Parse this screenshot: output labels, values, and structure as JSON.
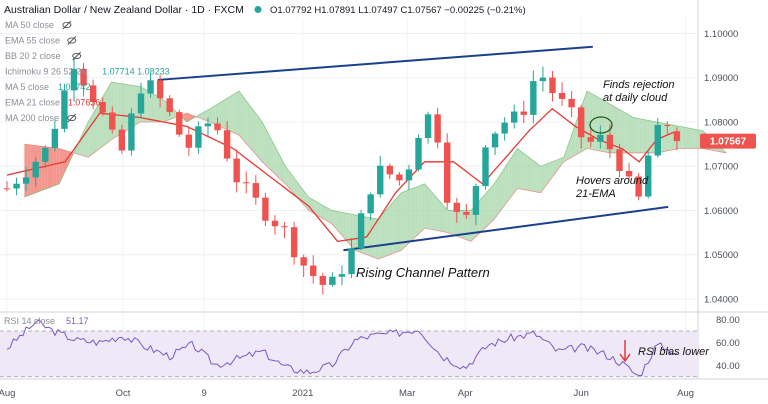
{
  "header": {
    "symbol": "Australian Dollar / New Zealand Dollar · 1D · FXCM",
    "ohlc": "O1.07792  H1.07891  L1.07497  C1.07567  −0.00225 (−0.21%)"
  },
  "legend": [
    {
      "label": "MA 50 close",
      "value": ""
    },
    {
      "label": "EMA 55 close",
      "value": ""
    },
    {
      "label": "BB 20 2 close",
      "value": ""
    },
    {
      "label": "Ichimoku 9 26 52 26",
      "value": "1.07714  1.08233"
    },
    {
      "label": "MA 5 close",
      "value": "1.07742"
    },
    {
      "label": "EMA 21 close",
      "value": "1.07636"
    },
    {
      "label": "MA 200 close",
      "value": ""
    }
  ],
  "rsi_label": "RSI 14 close",
  "rsi_value": "51.17",
  "last_price_tag": "1.07567",
  "colors": {
    "up": "#26a69a",
    "down": "#ef5350",
    "ema": "#e53935",
    "ma5": "#1e3a8a",
    "channel": "#1c3f8c",
    "cloud_bull": "#a5d6a7",
    "cloud_bear": "#f28b82",
    "rsi_line": "#7e57c2",
    "rsi_band": "#ede7f6",
    "price_tag": "#ef5350",
    "anno_arrow": "#e53935"
  },
  "annotations": {
    "channel_title": "Rising Channel Pattern",
    "rejection": [
      "Finds rejection",
      "at daily cloud"
    ],
    "hovers": [
      "Hovers around",
      "21-EMA"
    ],
    "rsi_bias": "RSI bias lower"
  },
  "chart_data": [
    {
      "type": "candlestick",
      "title": "Australian Dollar / New Zealand Dollar · 1D · FXCM",
      "x_ticks": [
        "Aug",
        "Oct",
        "9",
        "2021",
        "Mar",
        "Apr",
        "Jun",
        "Aug"
      ],
      "y_ticks": [
        1.04,
        1.05,
        1.06,
        1.07,
        1.08,
        1.09,
        1.1
      ],
      "ylim": [
        1.0375,
        1.1035
      ],
      "last_close": 1.07567,
      "path_months": [
        0,
        0.7,
        1.15,
        1.6,
        1.95,
        2.35,
        2.75,
        3.1,
        3.55,
        4.0,
        4.35,
        4.75,
        5.15,
        5.55,
        5.95,
        6.35,
        6.65,
        6.85,
        7.05,
        7.35,
        7.65,
        7.95,
        8.25,
        8.55,
        8.85,
        9.15,
        9.45,
        9.75,
        10.0,
        10.15,
        10.4,
        10.65,
        10.85,
        11.1,
        11.35,
        11.55
      ],
      "path_values": [
        1.065,
        1.074,
        1.094,
        1.083,
        1.072,
        1.09,
        1.083,
        1.074,
        1.081,
        1.066,
        1.061,
        1.056,
        1.047,
        1.042,
        1.051,
        1.069,
        1.068,
        1.066,
        1.077,
        1.083,
        1.059,
        1.058,
        1.076,
        1.08,
        1.081,
        1.092,
        1.086,
        1.081,
        1.074,
        1.077,
        1.074,
        1.069,
        1.06,
        1.075,
        1.08,
        1.078
      ],
      "ema21": {
        "months": [
          0,
          1,
          1.6,
          2.3,
          3.1,
          3.9,
          4.6,
          5.2,
          5.7,
          6.2,
          6.7,
          7.2,
          7.7,
          8.2,
          8.6,
          9.0,
          9.4,
          9.8,
          10.2,
          10.6,
          10.9,
          11.2,
          11.55
        ],
        "values": [
          1.068,
          1.071,
          1.082,
          1.081,
          1.079,
          1.074,
          1.067,
          1.061,
          1.053,
          1.054,
          1.064,
          1.071,
          1.071,
          1.066,
          1.072,
          1.078,
          1.083,
          1.079,
          1.076,
          1.074,
          1.071,
          1.076,
          1.078
        ]
      },
      "channel_upper": {
        "months": [
          2.6,
          10.1
        ],
        "values": [
          1.0895,
          1.097
        ]
      },
      "channel_lower": {
        "months": [
          5.8,
          11.4
        ],
        "values": [
          1.051,
          1.0608
        ]
      },
      "cloud": {
        "months": [
          0.3,
          0.9,
          1.4,
          1.8,
          2.3,
          2.7,
          3.1,
          3.5,
          4.0,
          4.4,
          4.8,
          5.2,
          5.6,
          6.0,
          6.4,
          6.8,
          7.2,
          7.6,
          8.0,
          8.4,
          8.8,
          9.2,
          9.6,
          10.0,
          10.4,
          10.8,
          11.2,
          11.6,
          12.0,
          12.4
        ],
        "span_a": [
          1.063,
          1.066,
          1.08,
          1.089,
          1.088,
          1.085,
          1.08,
          1.083,
          1.087,
          1.08,
          1.07,
          1.063,
          1.06,
          1.059,
          1.058,
          1.064,
          1.066,
          1.06,
          1.06,
          1.066,
          1.074,
          1.07,
          1.072,
          1.087,
          1.084,
          1.081,
          1.08,
          1.079,
          1.078,
          1.073
        ],
        "span_b": [
          1.075,
          1.074,
          1.072,
          1.076,
          1.08,
          1.08,
          1.082,
          1.08,
          1.077,
          1.071,
          1.066,
          1.06,
          1.057,
          1.051,
          1.049,
          1.051,
          1.056,
          1.055,
          1.053,
          1.058,
          1.065,
          1.064,
          1.071,
          1.074,
          1.073,
          1.073,
          1.073,
          1.074,
          1.074,
          1.073
        ]
      }
    },
    {
      "type": "line",
      "title": "RSI 14 close",
      "y_ticks": [
        40,
        60,
        80
      ],
      "ylim": [
        28,
        84
      ],
      "band": [
        30,
        70
      ],
      "last_value": 51.17,
      "months": [
        0,
        0.5,
        0.8,
        1.2,
        1.6,
        2.0,
        2.4,
        2.8,
        3.2,
        3.6,
        4.0,
        4.4,
        4.8,
        5.2,
        5.6,
        6.0,
        6.3,
        6.7,
        7.1,
        7.5,
        7.9,
        8.3,
        8.7,
        9.1,
        9.5,
        9.9,
        10.3,
        10.6,
        10.9,
        11.2,
        11.55
      ],
      "values": [
        55,
        78,
        70,
        62,
        60,
        66,
        56,
        48,
        58,
        40,
        46,
        52,
        38,
        34,
        40,
        62,
        66,
        68,
        72,
        48,
        38,
        58,
        64,
        68,
        52,
        56,
        50,
        42,
        30,
        58,
        51
      ]
    }
  ]
}
